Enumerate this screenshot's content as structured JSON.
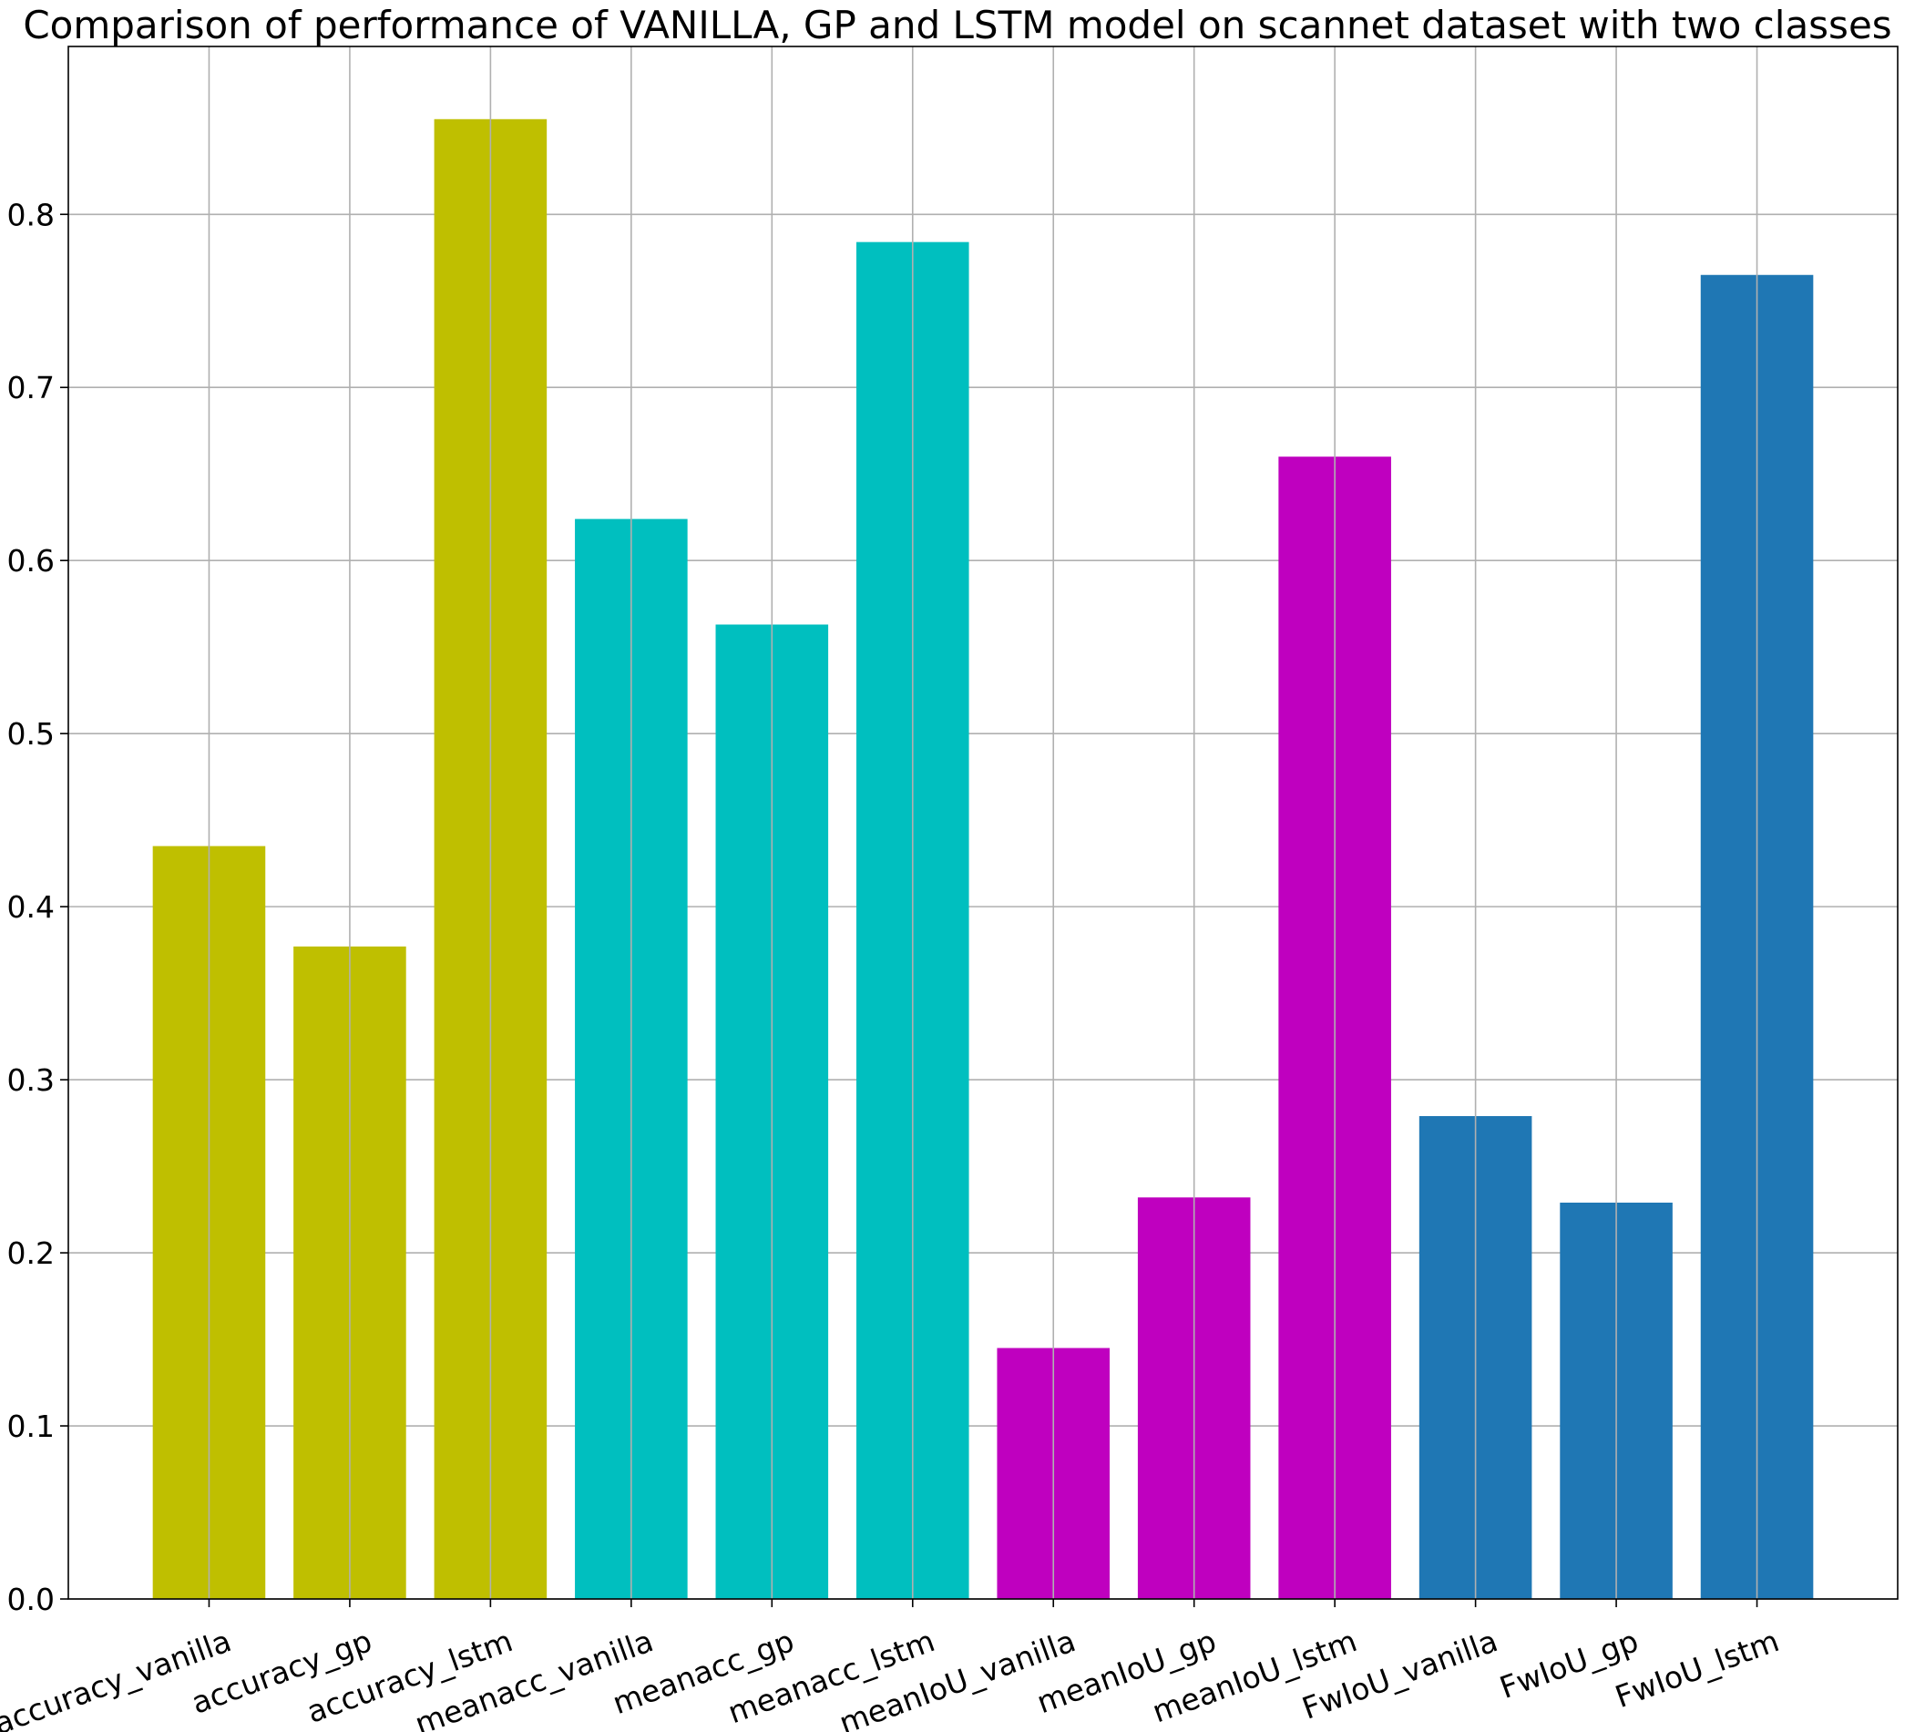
{
  "chart_data": {
    "type": "bar",
    "title": "Comparison of performance of VANILLA, GP and LSTM model on scannet dataset with two classes",
    "xlabel": "",
    "ylabel": "",
    "ylim": [
      0,
      0.897
    ],
    "yticks": [
      0.0,
      0.1,
      0.2,
      0.3,
      0.4,
      0.5,
      0.6,
      0.7,
      0.8
    ],
    "ytick_labels": [
      "0.0",
      "0.1",
      "0.2",
      "0.3",
      "0.4",
      "0.5",
      "0.6",
      "0.7",
      "0.8"
    ],
    "grid": true,
    "categories": [
      "accuracy_vanilla",
      "accuracy_gp",
      "accuracy_lstm",
      "meanacc_vanilla",
      "meanacc_gp",
      "meanacc_lstm",
      "meanIoU_vanilla",
      "meanIoU_gp",
      "meanIoU_lstm",
      "FwIoU_vanilla",
      "FwIoU_gp",
      "FwIoU_lstm"
    ],
    "values": [
      0.435,
      0.377,
      0.855,
      0.624,
      0.563,
      0.784,
      0.145,
      0.232,
      0.66,
      0.279,
      0.229,
      0.765
    ],
    "colors": [
      "#bfbf00",
      "#bfbf00",
      "#bfbf00",
      "#00bfbf",
      "#00bfbf",
      "#00bfbf",
      "#bf00bf",
      "#bf00bf",
      "#bf00bf",
      "#1f77b4",
      "#1f77b4",
      "#1f77b4"
    ],
    "tick_label_rotation_deg": 20
  }
}
